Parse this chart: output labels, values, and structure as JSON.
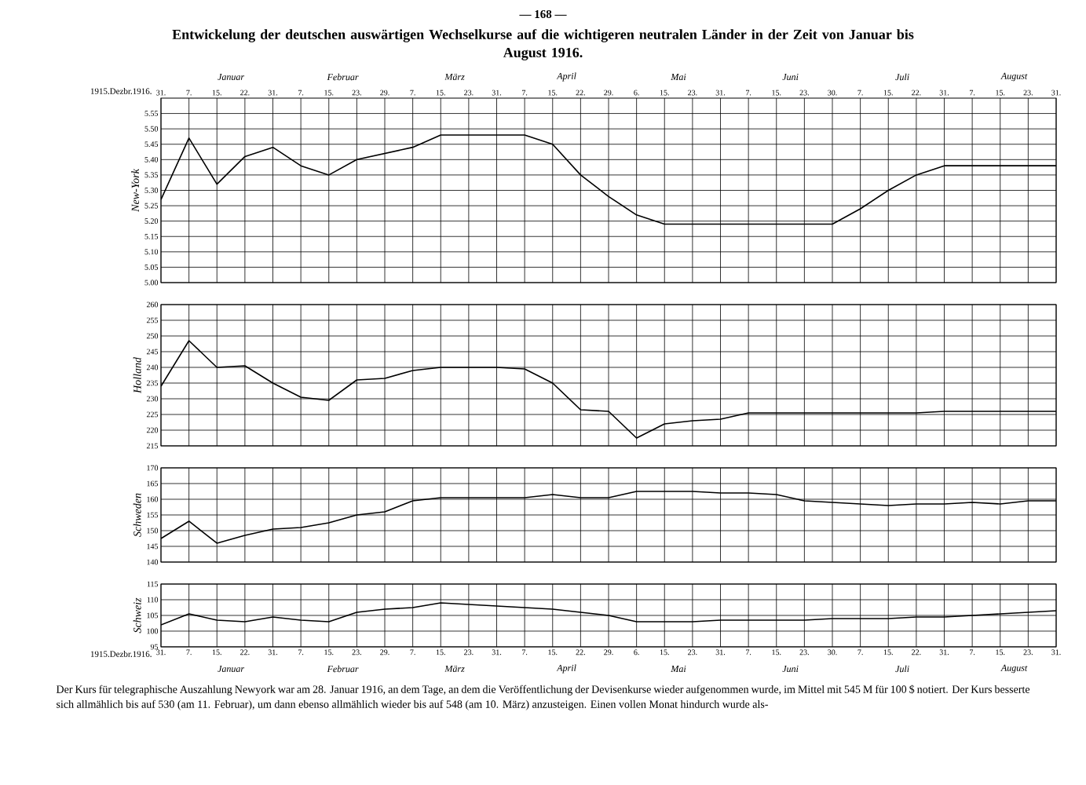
{
  "chart_data": [
    {
      "type": "line",
      "title": "Entwickelung der deutschen auswärtigen Wechselkurse auf die wichtigeren neutralen Länder in der Zeit von Januar bis August 1916.",
      "ylabel": "New-York",
      "categories": [
        "31.",
        "7.",
        "15.",
        "22.",
        "31.",
        "7.",
        "15.",
        "23.",
        "29.",
        "7.",
        "15.",
        "23.",
        "31.",
        "7.",
        "15.",
        "22.",
        "29.",
        "6.",
        "15.",
        "23.",
        "31.",
        "7.",
        "15.",
        "23.",
        "30.",
        "7.",
        "15.",
        "22.",
        "31.",
        "7.",
        "15.",
        "23.",
        "31."
      ],
      "series": [
        {
          "color": "#000000",
          "values": [
            5.27,
            5.47,
            5.32,
            5.41,
            5.44,
            5.38,
            5.35,
            5.4,
            5.42,
            5.44,
            5.48,
            5.48,
            5.48,
            5.48,
            5.45,
            5.35,
            5.28,
            5.22,
            5.19,
            5.19,
            5.19,
            5.19,
            5.19,
            5.19,
            5.19,
            5.24,
            5.3,
            5.35,
            5.38,
            5.38,
            5.38,
            5.38,
            5.38
          ]
        }
      ],
      "ylim": [
        5.0,
        5.6
      ],
      "yticks": [
        {
          "value": 5.0,
          "label": "5.00"
        },
        {
          "value": 5.05,
          "label": "5.05"
        },
        {
          "value": 5.1,
          "label": "5.10"
        },
        {
          "value": 5.15,
          "label": "5.15"
        },
        {
          "value": 5.2,
          "label": "5.20"
        },
        {
          "value": 5.25,
          "label": "5.25"
        },
        {
          "value": 5.3,
          "label": "5.30"
        },
        {
          "value": 5.35,
          "label": "5.35"
        },
        {
          "value": 5.4,
          "label": "5.40"
        },
        {
          "value": 5.45,
          "label": "5.45"
        },
        {
          "value": 5.5,
          "label": "5.50"
        },
        {
          "value": 5.55,
          "label": "5.55"
        }
      ],
      "grid": true,
      "annotations": [
        "— 168 —",
        "1915.Dezbr.1916.",
        "Januar",
        "Februar",
        "März",
        "April",
        "Mai",
        "Juni",
        "Juli",
        "August"
      ]
    },
    {
      "type": "line",
      "ylabel": "Holland",
      "tick_labels": "y",
      "categories": [
        "31.",
        "7.",
        "15.",
        "22.",
        "31.",
        "7.",
        "15.",
        "23.",
        "29.",
        "7.",
        "15.",
        "23.",
        "31.",
        "7.",
        "15.",
        "22.",
        "29.",
        "6.",
        "15.",
        "23.",
        "31.",
        "7.",
        "15.",
        "23.",
        "30.",
        "7.",
        "15.",
        "22.",
        "31.",
        "7.",
        "15.",
        "23.",
        "31."
      ],
      "series": [
        {
          "color": "#000000",
          "values": [
            234,
            248.5,
            240,
            240.5,
            235,
            230.5,
            229.5,
            236,
            236.5,
            239,
            240,
            240,
            240,
            239.5,
            235,
            226.5,
            226,
            217.5,
            222,
            223,
            223.5,
            225.5,
            225.5,
            225.5,
            225.5,
            225.5,
            225.5,
            225.5,
            226,
            226,
            226,
            226,
            226
          ]
        }
      ],
      "ylim": [
        215,
        260
      ],
      "yticks": [
        215,
        220,
        225,
        230,
        235,
        240,
        245,
        250,
        255,
        260
      ],
      "grid": true
    },
    {
      "type": "line",
      "ylabel": "Schweden",
      "tick_labels": "y",
      "categories": [
        "31.",
        "7.",
        "15.",
        "22.",
        "31.",
        "7.",
        "15.",
        "23.",
        "29.",
        "7.",
        "15.",
        "23.",
        "31.",
        "7.",
        "15.",
        "22.",
        "29.",
        "6.",
        "15.",
        "23.",
        "31.",
        "7.",
        "15.",
        "23.",
        "30.",
        "7.",
        "15.",
        "22.",
        "31.",
        "7.",
        "15.",
        "23.",
        "31."
      ],
      "series": [
        {
          "color": "#000000",
          "values": [
            147.5,
            153,
            146,
            148.5,
            150.5,
            151,
            152.5,
            155,
            156,
            159.5,
            160.5,
            160.5,
            160.5,
            160.5,
            161.5,
            160.5,
            160.5,
            162.5,
            162.5,
            162.5,
            162,
            162,
            161.5,
            159.5,
            159,
            158.5,
            158,
            158.5,
            158.5,
            159,
            158.5,
            159.5,
            159.5
          ]
        }
      ],
      "ylim": [
        140,
        170
      ],
      "yticks": [
        140,
        145,
        150,
        155,
        160,
        165,
        170
      ],
      "grid": true
    },
    {
      "type": "line",
      "ylabel": "Schweiz",
      "categories": [
        "31.",
        "7.",
        "15.",
        "22.",
        "31.",
        "7.",
        "15.",
        "23.",
        "29.",
        "7.",
        "15.",
        "23.",
        "31.",
        "7.",
        "15.",
        "22.",
        "29.",
        "6.",
        "15.",
        "23.",
        "31.",
        "7.",
        "15.",
        "23.",
        "30.",
        "7.",
        "15.",
        "22.",
        "31.",
        "7.",
        "15.",
        "23.",
        "31."
      ],
      "series": [
        {
          "color": "#000000",
          "values": [
            102,
            105.5,
            103.5,
            103,
            104.5,
            103.5,
            103,
            106,
            107,
            107.5,
            109,
            108.5,
            108,
            107.5,
            107,
            106,
            105,
            103,
            103,
            103,
            103.5,
            103.5,
            103.5,
            103.5,
            104,
            104,
            104,
            104.5,
            104.5,
            105,
            105.5,
            106,
            106.5
          ]
        }
      ],
      "ylim": [
        95,
        115
      ],
      "yticks": [
        95,
        100,
        105,
        110,
        115
      ],
      "grid": true,
      "annotations": [
        "1915.Dezbr.1916.",
        "Januar",
        "Februar",
        "März",
        "April",
        "Mai",
        "Juni",
        "Juli",
        "August",
        "Der Kurs für telegraphische Auszahlung Newyork war am 28. Januar 1916, an dem Tage, an dem die Veröffentlichung der Devisenkurse wieder aufgenommen wurde, im Mittel mit 545 M für 100 $ notiert. Der Kurs besserte sich allmählich bis auf 530 (am 11. Februar), um dann ebenso allmählich wieder bis auf 548 (am 10. März) anzusteigen. Einen vollen Monat hindurch wurde als-"
      ]
    }
  ]
}
